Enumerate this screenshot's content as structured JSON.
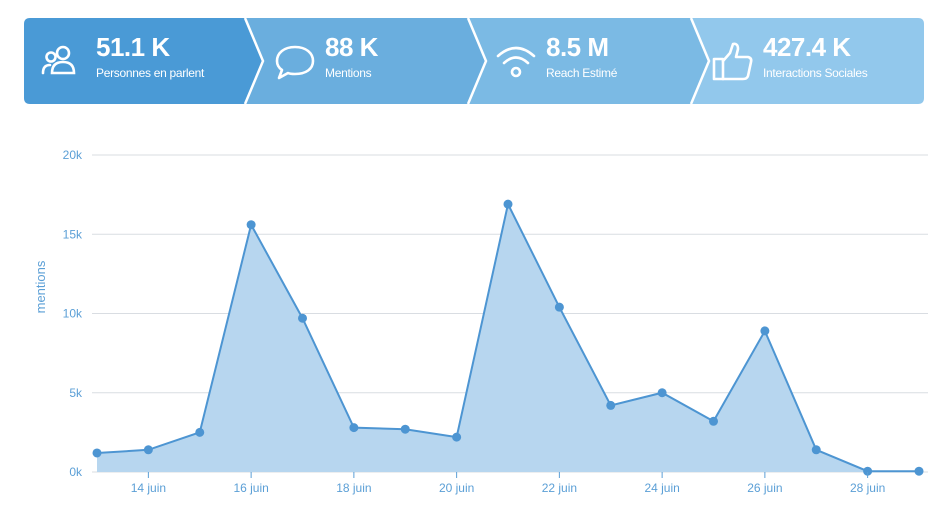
{
  "kpis": [
    {
      "value": "51.1 K",
      "label": "Personnes en parlent",
      "icon": "people-icon",
      "color": "#4a9ad6"
    },
    {
      "value": "88 K",
      "label": "Mentions",
      "icon": "speech-bubble-icon",
      "color": "#6aaede"
    },
    {
      "value": "8.5 M",
      "label": "Reach Estimé",
      "icon": "wifi-icon",
      "color": "#7bbae4"
    },
    {
      "value": "427.4 K",
      "label": "Interactions Sociales",
      "icon": "thumbs-up-icon",
      "color": "#92c8ec"
    }
  ],
  "chart_data": {
    "type": "area",
    "ylabel": "mentions",
    "xlabel": "",
    "title": "",
    "ylim": [
      0,
      20000
    ],
    "yticks": [
      0,
      5000,
      10000,
      15000,
      20000
    ],
    "ytick_labels": [
      "0k",
      "5k",
      "10k",
      "15k",
      "20k"
    ],
    "x": [
      "13 juin",
      "14 juin",
      "15 juin",
      "16 juin",
      "17 juin",
      "18 juin",
      "19 juin",
      "20 juin",
      "21 juin",
      "22 juin",
      "23 juin",
      "24 juin",
      "25 juin",
      "26 juin",
      "27 juin",
      "28 juin",
      "29 juin"
    ],
    "xtick_labels": [
      "14 juin",
      "16 juin",
      "18 juin",
      "20 juin",
      "22 juin",
      "24 juin",
      "26 juin",
      "28 juin"
    ],
    "series": [
      {
        "values": [
          1200,
          1400,
          2500,
          15600,
          9700,
          2800,
          2700,
          2200,
          16900,
          10400,
          4200,
          5000,
          3200,
          8900,
          1400,
          50,
          50
        ]
      }
    ],
    "grid": true,
    "line_color": "#4d95d2",
    "fill_color": "#b7d6ef"
  }
}
